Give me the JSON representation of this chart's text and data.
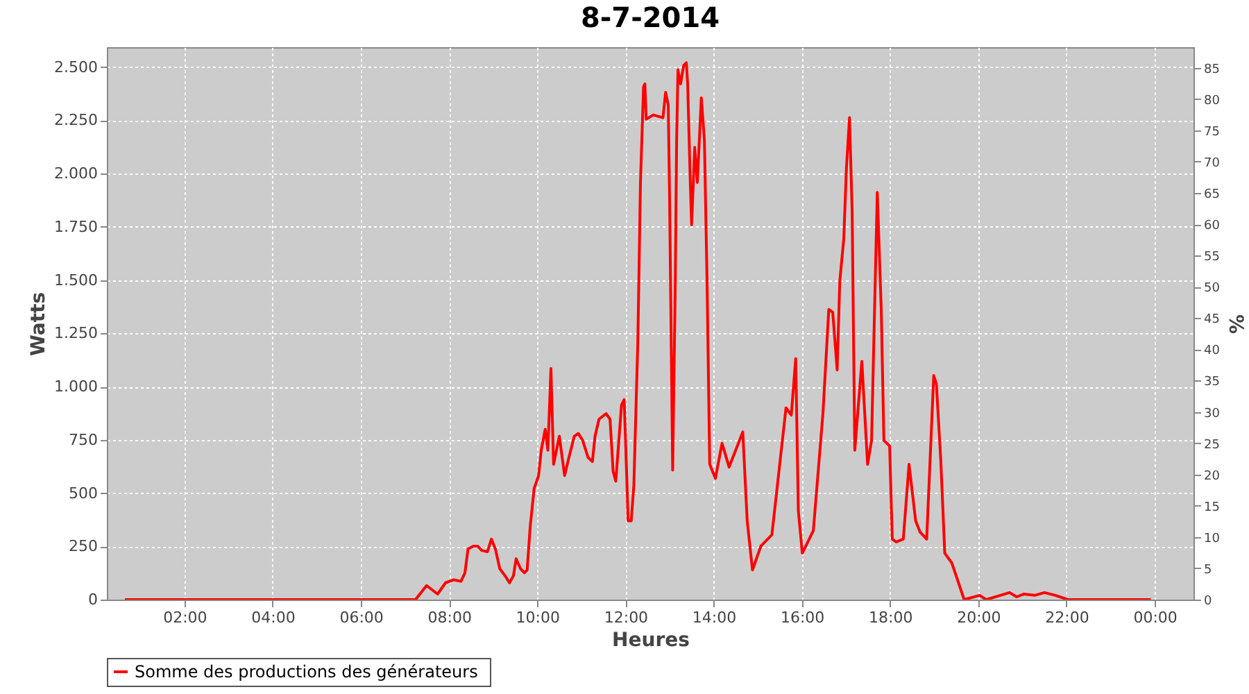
{
  "chart_data": {
    "type": "line",
    "title": "8-7-2014",
    "xlabel": "Heures",
    "ylabel": "Watts",
    "y2label": "%",
    "xlim": [
      0.24,
      24.88
    ],
    "ylim": [
      0,
      2593
    ],
    "y2lim": [
      0,
      88.3
    ],
    "xticks": [
      {
        "value": 2,
        "label": "02:00"
      },
      {
        "value": 4,
        "label": "04:00"
      },
      {
        "value": 6,
        "label": "06:00"
      },
      {
        "value": 8,
        "label": "08:00"
      },
      {
        "value": 10,
        "label": "10:00"
      },
      {
        "value": 12,
        "label": "12:00"
      },
      {
        "value": 14,
        "label": "14:00"
      },
      {
        "value": 16,
        "label": "16:00"
      },
      {
        "value": 18,
        "label": "18:00"
      },
      {
        "value": 20,
        "label": "20:00"
      },
      {
        "value": 22,
        "label": "22:00"
      },
      {
        "value": 24,
        "label": "00:00"
      }
    ],
    "yticks": [
      0,
      250,
      500,
      750,
      {
        "value": 1000,
        "label": "1.000"
      },
      {
        "value": 1250,
        "label": "1.250"
      },
      {
        "value": 1500,
        "label": "1.500"
      },
      {
        "value": 1750,
        "label": "1.750"
      },
      {
        "value": 2000,
        "label": "2.000"
      },
      {
        "value": 2250,
        "label": "2.250"
      },
      {
        "value": 2500,
        "label": "2.500"
      }
    ],
    "y2ticks": [
      0,
      5,
      10,
      15,
      20,
      25,
      30,
      35,
      40,
      45,
      50,
      55,
      60,
      65,
      70,
      75,
      80,
      85
    ],
    "grid": true,
    "legend": "bottom",
    "marker": "none",
    "line_style": "solid",
    "x": [
      0.65,
      7.24,
      7.49,
      7.74,
      7.92,
      8.11,
      8.27,
      8.36,
      8.43,
      8.55,
      8.65,
      8.74,
      8.87,
      8.96,
      9.05,
      9.15,
      9.27,
      9.37,
      9.46,
      9.52,
      9.62,
      9.71,
      9.77,
      9.84,
      9.93,
      10.03,
      10.09,
      10.18,
      10.24,
      10.31,
      10.37,
      10.5,
      10.62,
      10.71,
      10.84,
      10.93,
      11.03,
      11.15,
      11.25,
      11.31,
      11.4,
      11.56,
      11.65,
      11.72,
      11.78,
      11.91,
      11.97,
      12.03,
      12.06,
      12.13,
      12.19,
      12.28,
      12.34,
      12.41,
      12.44,
      12.47,
      12.63,
      12.85,
      12.91,
      12.97,
      13.0,
      13.07,
      13.13,
      13.16,
      13.19,
      13.25,
      13.32,
      13.38,
      13.41,
      13.47,
      13.5,
      13.57,
      13.63,
      13.72,
      13.79,
      13.85,
      13.91,
      14.04,
      14.19,
      14.35,
      14.66,
      14.76,
      14.88,
      15.07,
      15.32,
      15.64,
      15.76,
      15.86,
      15.92,
      16.01,
      16.26,
      16.48,
      16.61,
      16.7,
      16.8,
      16.86,
      16.95,
      17.01,
      17.08,
      17.14,
      17.2,
      17.36,
      17.49,
      17.58,
      17.71,
      17.8,
      17.86,
      17.99,
      18.05,
      18.14,
      18.3,
      18.43,
      18.58,
      18.68,
      18.83,
      18.99,
      19.05,
      19.15,
      19.24,
      19.4,
      19.68,
      20.03,
      20.18,
      20.5,
      20.71,
      20.87,
      21.03,
      21.28,
      21.5,
      21.75,
      22.03,
      23.91
    ],
    "series": [
      {
        "name": "Somme des productions des  générateurs",
        "color": "#ff0000",
        "values": [
          0,
          0,
          66,
          26,
          79,
          93,
          86,
          126,
          238,
          251,
          251,
          231,
          225,
          284,
          238,
          145,
          112,
          79,
          112,
          192,
          145,
          126,
          139,
          344,
          522,
          582,
          701,
          800,
          701,
          1085,
          635,
          767,
          582,
          661,
          767,
          780,
          747,
          668,
          648,
          767,
          847,
          873,
          847,
          602,
          556,
          913,
          939,
          569,
          370,
          370,
          536,
          1210,
          1958,
          2408,
          2421,
          2255,
          2275,
          2262,
          2381,
          2322,
          1892,
          608,
          1495,
          2156,
          2487,
          2421,
          2507,
          2520,
          2421,
          1958,
          1759,
          2123,
          1958,
          2355,
          2156,
          1495,
          635,
          569,
          734,
          622,
          787,
          370,
          139,
          251,
          304,
          900,
          866,
          1131,
          417,
          218,
          324,
          880,
          1362,
          1349,
          1078,
          1495,
          1693,
          2024,
          2262,
          1825,
          701,
          1118,
          635,
          747,
          1911,
          1362,
          747,
          721,
          284,
          271,
          284,
          635,
          370,
          317,
          284,
          1052,
          1012,
          655,
          218,
          172,
          0,
          20,
          0,
          20,
          33,
          13,
          26,
          20,
          33,
          20,
          0,
          0
        ]
      }
    ]
  }
}
